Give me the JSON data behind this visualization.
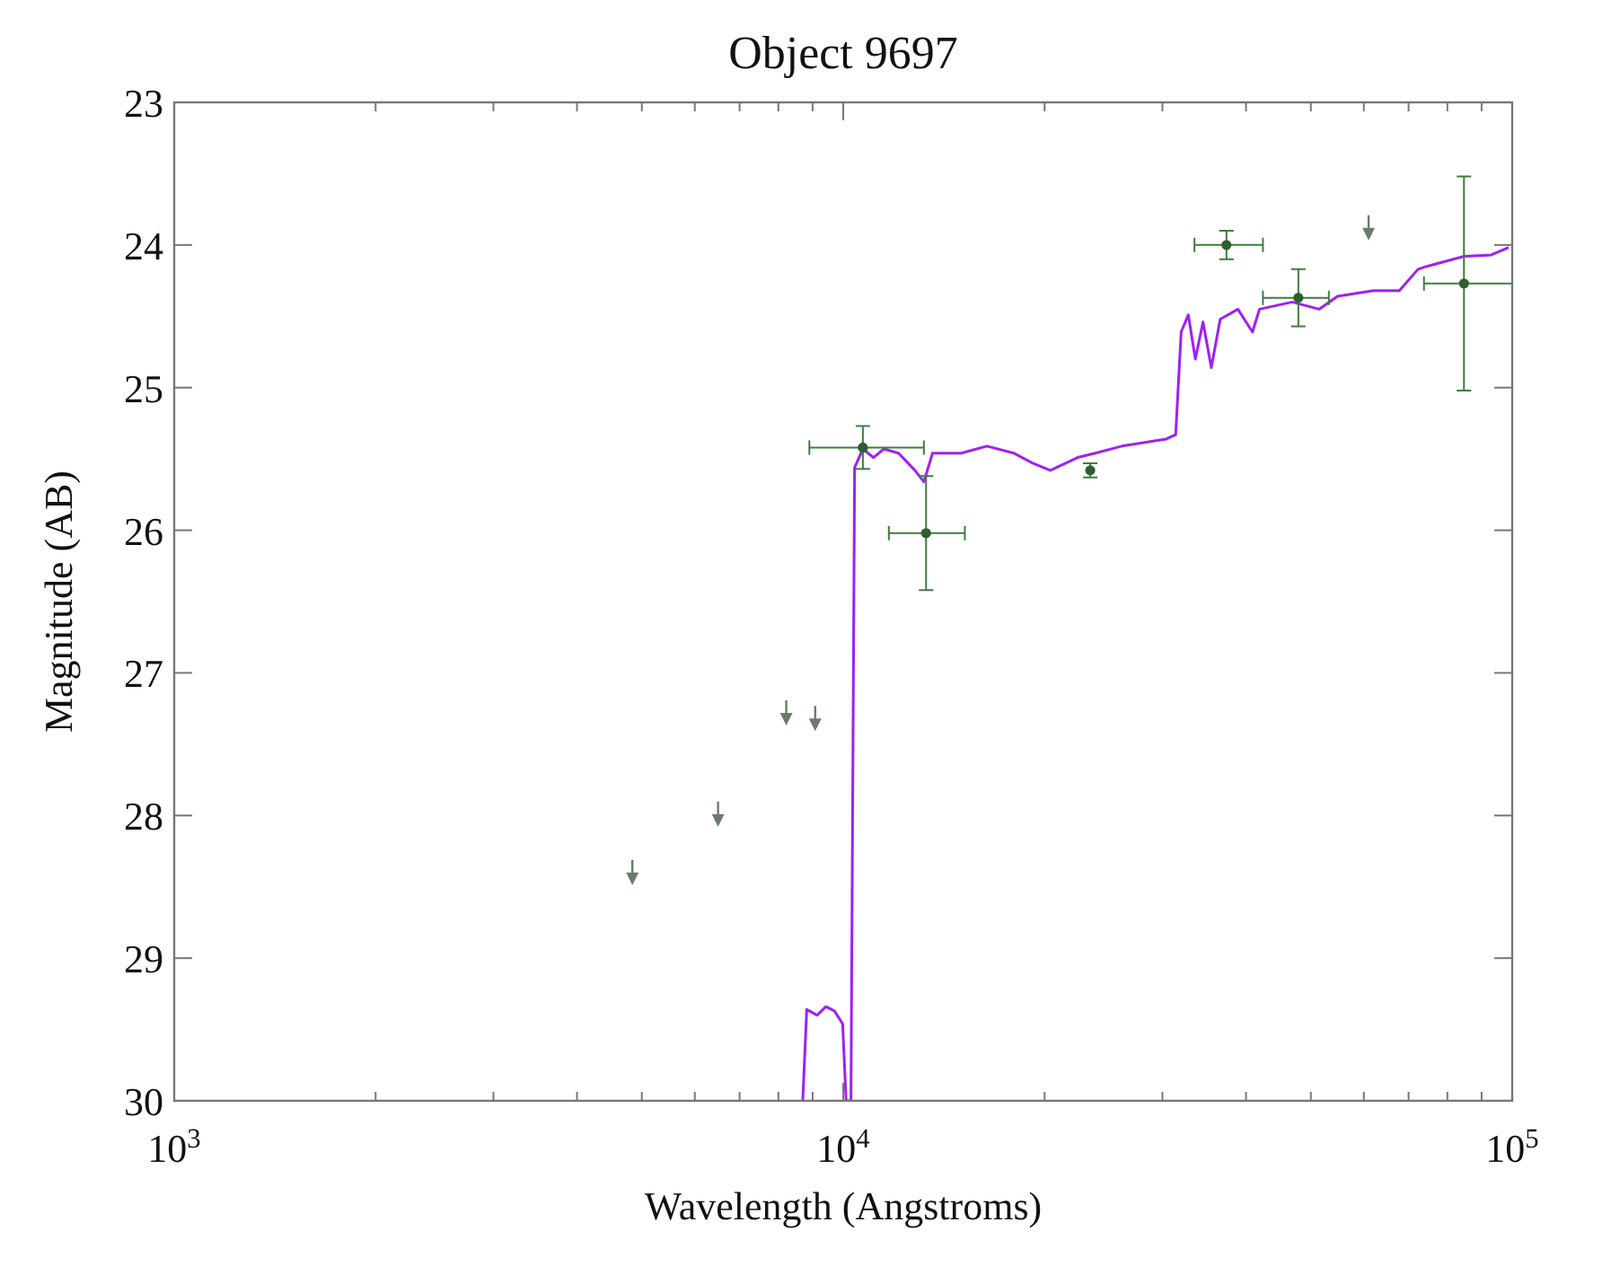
{
  "chart_data": {
    "type": "line",
    "title": "Object 9697",
    "xlabel": "Wavelength (Angstroms)",
    "ylabel": "Magnitude (AB)",
    "log": "x",
    "xlim": [
      1000,
      100000
    ],
    "ylim": [
      30,
      23
    ],
    "xticks": [
      {
        "value": 1000,
        "label": "10$^{3}$"
      },
      {
        "value": 2000,
        "label": null
      },
      {
        "value": 3000,
        "label": null
      },
      {
        "value": 4000,
        "label": null
      },
      {
        "value": 5000,
        "label": null
      },
      {
        "value": 6000,
        "label": null
      },
      {
        "value": 7000,
        "label": null
      },
      {
        "value": 8000,
        "label": null
      },
      {
        "value": 9000,
        "label": null
      },
      {
        "value": 10000,
        "label": "10$^{4}$"
      },
      {
        "value": 20000,
        "label": null
      },
      {
        "value": 30000,
        "label": null
      },
      {
        "value": 40000,
        "label": null
      },
      {
        "value": 50000,
        "label": null
      },
      {
        "value": 60000,
        "label": null
      },
      {
        "value": 70000,
        "label": null
      },
      {
        "value": 80000,
        "label": null
      },
      {
        "value": 90000,
        "label": null
      },
      {
        "value": 100000,
        "label": "10$^{5}$"
      }
    ],
    "yticks": [
      23,
      24,
      25,
      26,
      27,
      28,
      29,
      30
    ],
    "grid": false,
    "series": [
      {
        "color": "#a020f0",
        "marker": "none",
        "line_style": "solid",
        "x": [
          8700,
          8820,
          9140,
          9420,
          9700,
          9980,
          10100,
          10270,
          10400,
          10700,
          11100,
          11500,
          12100,
          12800,
          13200,
          13600,
          15000,
          16400,
          18000,
          19200,
          20400,
          22400,
          23800,
          26100,
          30400,
          31400,
          32000,
          32800,
          33600,
          34500,
          35500,
          36600,
          38900,
          40900,
          41900,
          46900,
          51500,
          54800,
          62000,
          67800,
          72300,
          74500,
          84700,
          93000,
          98400
        ],
        "values": [
          30,
          29.36,
          29.4,
          29.34,
          29.37,
          29.46,
          30,
          30,
          25.56,
          25.43,
          25.49,
          25.43,
          25.46,
          25.58,
          25.66,
          25.46,
          25.46,
          25.41,
          25.46,
          25.53,
          25.58,
          25.49,
          25.46,
          25.41,
          25.36,
          25.33,
          24.61,
          24.49,
          24.8,
          24.54,
          24.86,
          24.52,
          24.45,
          24.61,
          24.45,
          24.4,
          24.45,
          24.36,
          24.32,
          24.32,
          24.17,
          24.15,
          24.08,
          24.07,
          24.02
        ]
      },
      {
        "type": "scatter",
        "color": "#2e5e2e",
        "marker": "circle",
        "x": [
          10700,
          13300,
          23400,
          37400,
          47900,
          84700
        ],
        "values": [
          25.42,
          26.02,
          25.58,
          24.0,
          24.37,
          24.27
        ],
        "errors": [
          0.15,
          0.4,
          0.05,
          0.1,
          0.2,
          0.75
        ],
        "xerrors": [
          [
            8900,
            13200
          ],
          [
            11700,
            15200
          ],
          null,
          [
            33500,
            42400
          ],
          [
            42400,
            53200
          ],
          [
            73800,
            100000
          ]
        ]
      },
      {
        "type": "scatter",
        "color": "#6b7b6b",
        "marker": "triangle",
        "x": [
          4840,
          6500,
          8220,
          9080,
          61000
        ],
        "values": [
          28.4,
          27.99,
          27.28,
          27.32,
          23.88
        ]
      }
    ]
  }
}
